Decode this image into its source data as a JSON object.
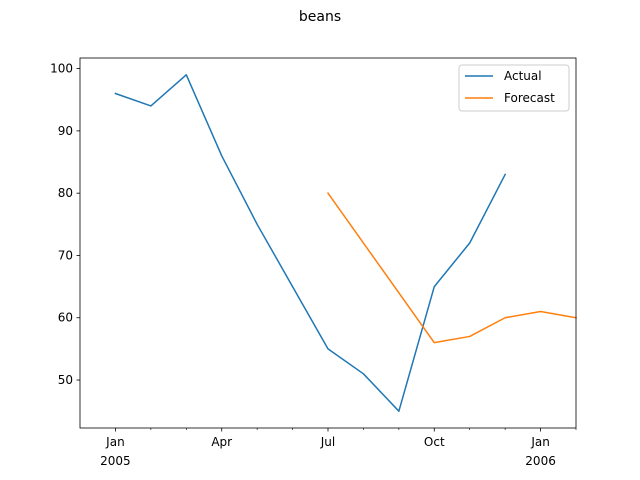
{
  "chart_data": {
    "type": "line",
    "title": "beans",
    "xlabel": "",
    "ylabel": "",
    "x_axis": {
      "type": "monthly",
      "range": [
        "2004-12",
        "2006-02"
      ],
      "major_ticks": [
        {
          "date": "2005-01",
          "label": "Jan",
          "sublabel": "2005"
        },
        {
          "date": "2005-04",
          "label": "Apr",
          "sublabel": ""
        },
        {
          "date": "2005-07",
          "label": "Jul",
          "sublabel": ""
        },
        {
          "date": "2005-10",
          "label": "Oct",
          "sublabel": ""
        },
        {
          "date": "2006-01",
          "label": "Jan",
          "sublabel": "2006"
        }
      ],
      "minor_ticks": [
        "2005-02",
        "2005-03",
        "2005-05",
        "2005-06",
        "2005-08",
        "2005-09",
        "2005-11",
        "2005-12",
        "2006-02"
      ]
    },
    "y_axis": {
      "range": [
        42.3,
        101.7
      ],
      "ticks": [
        50,
        60,
        70,
        80,
        90,
        100
      ]
    },
    "grid": false,
    "legend": "top-right",
    "series": [
      {
        "name": "Actual",
        "color": "#1f77b4",
        "x": [
          "2005-01",
          "2005-02",
          "2005-03",
          "2005-04",
          "2005-05",
          "2005-06",
          "2005-07",
          "2005-08",
          "2005-09",
          "2005-10",
          "2005-11",
          "2005-12"
        ],
        "y": [
          96,
          94,
          99,
          86,
          75,
          65,
          55,
          51,
          45,
          65,
          72,
          83
        ]
      },
      {
        "name": "Forecast",
        "color": "#ff7f0e",
        "x": [
          "2005-07",
          "2005-10",
          "2005-11",
          "2005-12",
          "2006-01",
          "2006-02"
        ],
        "y": [
          80,
          56,
          57,
          60,
          61,
          60
        ]
      }
    ]
  }
}
